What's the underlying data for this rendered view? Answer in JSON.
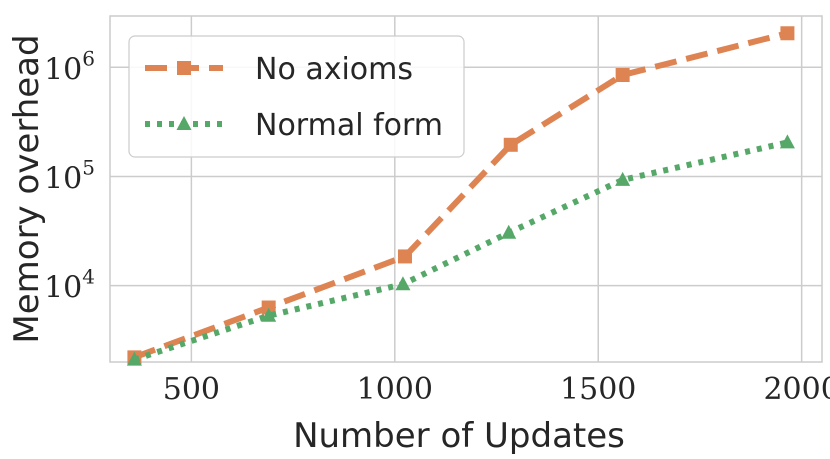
{
  "chart_data": {
    "type": "line",
    "xlabel": "Number of Updates",
    "ylabel": "Memory overhead",
    "xlim": [
      300,
      2050
    ],
    "ylim_log10": [
      3.3,
      6.47
    ],
    "yscale": "log",
    "grid": true,
    "legend_position": "top-left",
    "x_ticks": [
      500,
      1000,
      1500,
      2000
    ],
    "x_tick_labels": [
      "500",
      "1000",
      "1500",
      "2000"
    ],
    "y_ticks": [
      10000,
      100000,
      1000000
    ],
    "y_tick_base": "10",
    "y_tick_exponents": [
      "4",
      "5",
      "6"
    ],
    "series": [
      {
        "name": "No axioms",
        "color": "#dd8452",
        "marker": "square",
        "line_style": "dashed",
        "x": [
          360,
          690,
          1025,
          1285,
          1560,
          1965
        ],
        "y": [
          2200,
          6300,
          18500,
          195000,
          850000,
          2050000
        ]
      },
      {
        "name": "Normal form",
        "color": "#55a868",
        "marker": "triangle",
        "line_style": "dotted",
        "x": [
          360,
          690,
          1020,
          1280,
          1560,
          1965
        ],
        "y": [
          2100,
          5300,
          10300,
          30500,
          93000,
          205000
        ]
      }
    ]
  }
}
